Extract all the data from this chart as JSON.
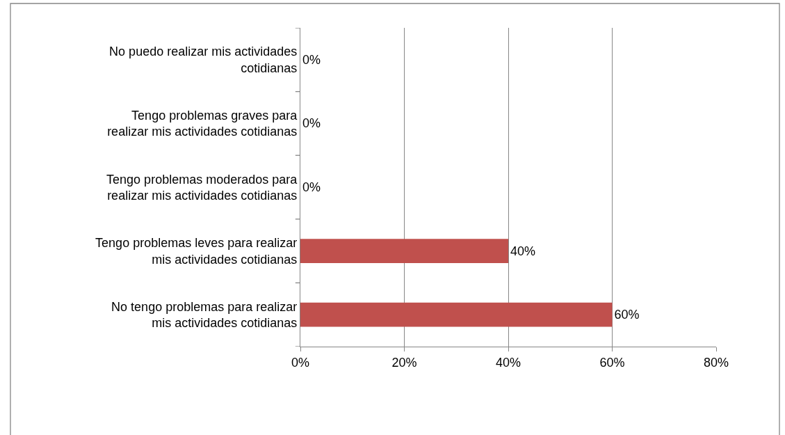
{
  "chart_data": {
    "type": "bar",
    "orientation": "horizontal",
    "categories": [
      "No puedo realizar mis actividades cotidianas",
      "Tengo problemas graves para realizar mis actividades cotidianas",
      "Tengo problemas moderados para realizar mis actividades cotidianas",
      "Tengo problemas leves para realizar mis actividades cotidianas",
      "No tengo problemas para realizar mis actividades cotidianas"
    ],
    "values": [
      0,
      0,
      0,
      40,
      60
    ],
    "value_labels": [
      "0%",
      "0%",
      "0%",
      "40%",
      "60%"
    ],
    "color": "#c0504d",
    "xlim": [
      0,
      80
    ],
    "xticks": [
      {
        "value": 0,
        "label": "0%"
      },
      {
        "value": 20,
        "label": "20%"
      },
      {
        "value": 40,
        "label": "40%"
      },
      {
        "value": 60,
        "label": "60%"
      },
      {
        "value": 80,
        "label": "80%"
      }
    ],
    "grid": "x"
  }
}
